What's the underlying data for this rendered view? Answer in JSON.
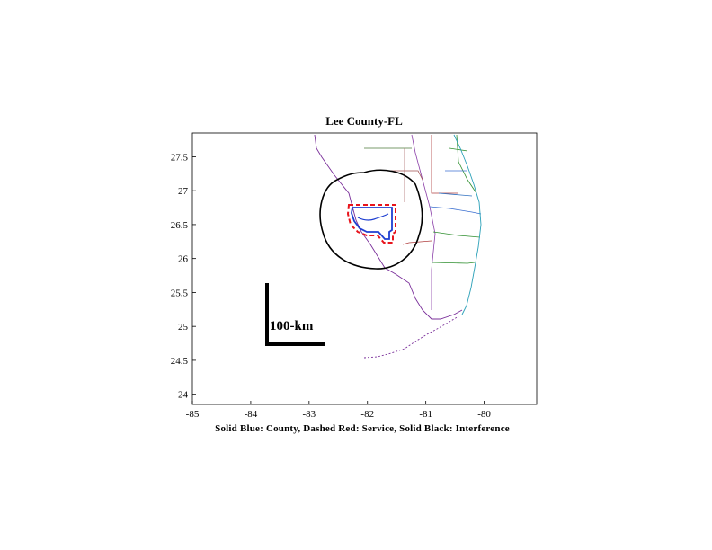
{
  "map": {
    "title": "Lee County-FL",
    "caption": "Solid Blue: County, Dashed Red: Service, Solid Black: Interference",
    "xlim": [
      -85,
      -79.1
    ],
    "ylim": [
      23.85,
      27.85
    ],
    "x_ticks": [
      -85,
      -84,
      -83,
      -82,
      -81,
      -80
    ],
    "y_ticks": [
      24,
      24.5,
      25,
      25.5,
      26,
      26.5,
      27,
      27.5
    ],
    "scale_bar_label": "100-km",
    "colors": {
      "county": "#1f3fd1",
      "service": "#e8141c",
      "interference": "#000000",
      "coast": "#333333"
    }
  }
}
